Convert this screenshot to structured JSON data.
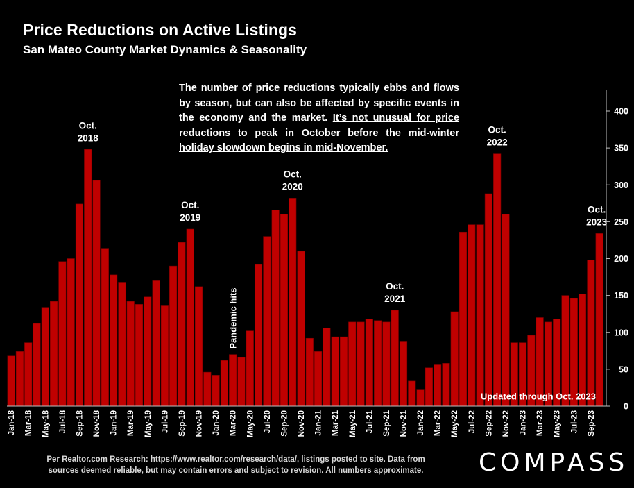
{
  "header": {
    "title": "Price Reductions on Active Listings",
    "subtitle": "San Mateo County Market Dynamics & Seasonality"
  },
  "note": {
    "text_plain": "The number of price reductions typically ebbs and flows by season, but can also be affected by specific events in the economy and the market.",
    "text_underlined": "It’s not unusual for price reductions to peak in October before the mid-winter holiday slowdown begins in mid-November."
  },
  "footer": {
    "source_line1": "Per Realtor.com Research:  https://www.realtor.com/research/data/, listings posted to site. Data from",
    "source_line2": "sources deemed reliable, but may contain errors and subject to revision. All numbers approximate."
  },
  "logo": {
    "text": "COMPASS"
  },
  "chart_data": {
    "type": "bar",
    "bar_color": "#c00000",
    "bar_stroke": "#7a0000",
    "y_axis_side": "right",
    "ylim": [
      0,
      400
    ],
    "yticks": [
      0,
      50,
      100,
      150,
      200,
      250,
      300,
      350,
      400
    ],
    "grid": false,
    "categories": [
      "Jan-18",
      "Feb-18",
      "Mar-18",
      "Apr-18",
      "May-18",
      "Jun-18",
      "Jul-18",
      "Aug-18",
      "Sep-18",
      "Oct-18",
      "Nov-18",
      "Dec-18",
      "Jan-19",
      "Feb-19",
      "Mar-19",
      "Apr-19",
      "May-19",
      "Jun-19",
      "Jul-19",
      "Aug-19",
      "Sep-19",
      "Oct-19",
      "Nov-19",
      "Dec-19",
      "Jan-20",
      "Feb-20",
      "Mar-20",
      "Apr-20",
      "May-20",
      "Jun-20",
      "Jul-20",
      "Aug-20",
      "Sep-20",
      "Oct-20",
      "Nov-20",
      "Dec-20",
      "Jan-21",
      "Feb-21",
      "Mar-21",
      "Apr-21",
      "May-21",
      "Jun-21",
      "Jul-21",
      "Aug-21",
      "Sep-21",
      "Oct-21",
      "Nov-21",
      "Dec-21",
      "Jan-22",
      "Feb-22",
      "Mar-22",
      "Apr-22",
      "May-22",
      "Jun-22",
      "Jul-22",
      "Aug-22",
      "Sep-22",
      "Oct-22",
      "Nov-22",
      "Dec-22",
      "Jan-23",
      "Feb-23",
      "Mar-23",
      "Apr-23",
      "May-23",
      "Jun-23",
      "Jul-23",
      "Aug-23",
      "Sep-23",
      "Oct-23"
    ],
    "xtick_labels": [
      "Jan-18",
      "Mar-18",
      "May-18",
      "Jul-18",
      "Sep-18",
      "Nov-18",
      "Jan-19",
      "Mar-19",
      "May-19",
      "Jul-19",
      "Sep-19",
      "Nov-19",
      "Jan-20",
      "Mar-20",
      "May-20",
      "Jul-20",
      "Sep-20",
      "Nov-20",
      "Jan-21",
      "Mar-21",
      "May-21",
      "Jul-21",
      "Sep-21",
      "Nov-21",
      "Jan-22",
      "Mar-22",
      "May-22",
      "Jul-22",
      "Sep-22",
      "Nov-22",
      "Jan-23",
      "Mar-23",
      "May-23",
      "Jul-23",
      "Sep-23"
    ],
    "values": [
      68,
      74,
      86,
      112,
      134,
      142,
      196,
      200,
      274,
      348,
      306,
      214,
      178,
      168,
      142,
      138,
      148,
      170,
      136,
      190,
      222,
      240,
      162,
      46,
      42,
      62,
      70,
      66,
      102,
      192,
      230,
      266,
      260,
      282,
      210,
      92,
      74,
      106,
      94,
      94,
      114,
      114,
      118,
      116,
      114,
      130,
      88,
      34,
      22,
      52,
      56,
      58,
      128,
      236,
      246,
      246,
      288,
      342,
      260,
      86,
      86,
      96,
      120,
      114,
      118,
      150,
      146,
      152,
      198,
      234
    ],
    "annotations": [
      {
        "label_line1": "Oct.",
        "label_line2": "2018",
        "category": "Oct-18"
      },
      {
        "label_line1": "Oct.",
        "label_line2": "2019",
        "category": "Oct-19"
      },
      {
        "label_line1": "Oct.",
        "label_line2": "2020",
        "category": "Oct-20"
      },
      {
        "label_line1": "Oct.",
        "label_line2": "2021",
        "category": "Oct-21"
      },
      {
        "label_line1": "Oct.",
        "label_line2": "2022",
        "category": "Oct-22"
      },
      {
        "label_line1": "Oct.",
        "label_line2": "2023",
        "category": "Oct-23"
      }
    ],
    "pandemic_label": "Pandemic hits",
    "updated_label": "Updated through Oct. 2023"
  }
}
